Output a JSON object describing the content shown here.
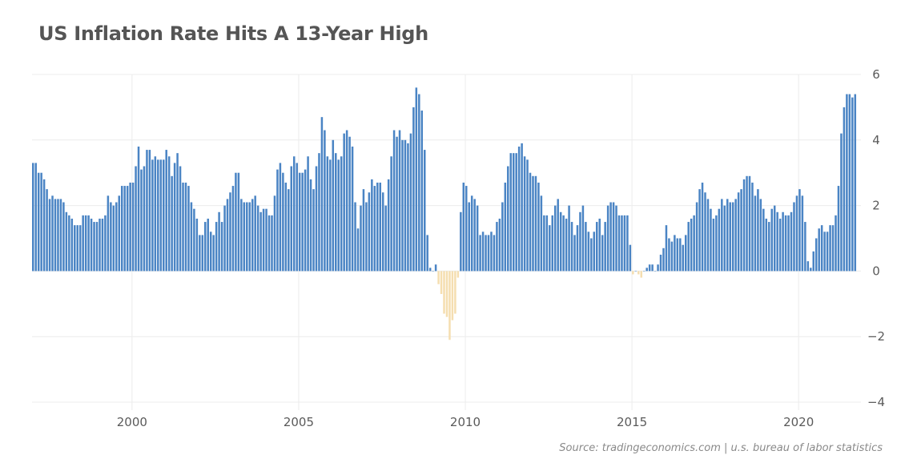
{
  "title": "US Inflation Rate Hits A 13-Year High",
  "source": "Source: tradingeconomics.com | u.s. bureau of labor statistics",
  "colors": {
    "positive": "#4a84c4",
    "negative": "#f5deb0",
    "grid": "#ececec",
    "text": "#5a5a5a"
  },
  "chart_data": {
    "type": "bar",
    "title": "US Inflation Rate Hits A 13-Year High",
    "xlabel": "",
    "ylabel": "",
    "ylim": [
      -4,
      6
    ],
    "yticks": [
      6,
      4,
      2,
      0,
      -2,
      -4
    ],
    "xticks": [
      2000,
      2005,
      2010,
      2015,
      2020
    ],
    "xlim": [
      1997.0,
      2021.75
    ],
    "start": "1997-01",
    "frequency": "monthly",
    "grid": true,
    "y_axis_position": "right",
    "series": [
      {
        "values": [
          3.3,
          3.3,
          3.0,
          3.0,
          2.8,
          2.5,
          2.2,
          2.3,
          2.2,
          2.2,
          2.2,
          2.1,
          1.8,
          1.7,
          1.6,
          1.4,
          1.4,
          1.4,
          1.7,
          1.7,
          1.7,
          1.6,
          1.5,
          1.5,
          1.6,
          1.6,
          1.7,
          2.3,
          2.1,
          2.0,
          2.1,
          2.3,
          2.6,
          2.6,
          2.6,
          2.7,
          2.7,
          3.2,
          3.8,
          3.1,
          3.2,
          3.7,
          3.7,
          3.4,
          3.5,
          3.4,
          3.4,
          3.4,
          3.7,
          3.5,
          2.9,
          3.3,
          3.6,
          3.2,
          2.7,
          2.7,
          2.6,
          2.1,
          1.9,
          1.6,
          1.1,
          1.1,
          1.5,
          1.6,
          1.2,
          1.1,
          1.5,
          1.8,
          1.5,
          2.0,
          2.2,
          2.4,
          2.6,
          3.0,
          3.0,
          2.2,
          2.1,
          2.1,
          2.1,
          2.2,
          2.3,
          2.0,
          1.8,
          1.9,
          1.9,
          1.7,
          1.7,
          2.3,
          3.1,
          3.3,
          3.0,
          2.7,
          2.5,
          3.2,
          3.5,
          3.3,
          3.0,
          3.0,
          3.1,
          3.5,
          2.8,
          2.5,
          3.2,
          3.6,
          4.7,
          4.3,
          3.5,
          3.4,
          4.0,
          3.6,
          3.4,
          3.5,
          4.2,
          4.3,
          4.1,
          3.8,
          2.1,
          1.3,
          2.0,
          2.5,
          2.1,
          2.4,
          2.8,
          2.6,
          2.7,
          2.7,
          2.4,
          2.0,
          2.8,
          3.5,
          4.3,
          4.1,
          4.3,
          4.0,
          4.0,
          3.9,
          4.2,
          5.0,
          5.6,
          5.4,
          4.9,
          3.7,
          1.1,
          0.1,
          0.0,
          0.2,
          -0.4,
          -0.7,
          -1.3,
          -1.4,
          -2.1,
          -1.5,
          -1.3,
          -0.2,
          1.8,
          2.7,
          2.6,
          2.1,
          2.3,
          2.2,
          2.0,
          1.1,
          1.2,
          1.1,
          1.1,
          1.2,
          1.1,
          1.5,
          1.6,
          2.1,
          2.7,
          3.2,
          3.6,
          3.6,
          3.6,
          3.8,
          3.9,
          3.5,
          3.4,
          3.0,
          2.9,
          2.9,
          2.7,
          2.3,
          1.7,
          1.7,
          1.4,
          1.7,
          2.0,
          2.2,
          1.8,
          1.7,
          1.6,
          2.0,
          1.5,
          1.1,
          1.4,
          1.8,
          2.0,
          1.5,
          1.2,
          1.0,
          1.2,
          1.5,
          1.6,
          1.1,
          1.5,
          2.0,
          2.1,
          2.1,
          2.0,
          1.7,
          1.7,
          1.7,
          1.7,
          0.8,
          -0.1,
          0.0,
          -0.1,
          -0.2,
          0.0,
          0.1,
          0.2,
          0.2,
          0.0,
          0.2,
          0.5,
          0.7,
          1.4,
          1.0,
          0.9,
          1.1,
          1.0,
          1.0,
          0.8,
          1.1,
          1.5,
          1.6,
          1.7,
          2.1,
          2.5,
          2.7,
          2.4,
          2.2,
          1.9,
          1.6,
          1.7,
          1.9,
          2.2,
          2.0,
          2.2,
          2.1,
          2.1,
          2.2,
          2.4,
          2.5,
          2.8,
          2.9,
          2.9,
          2.7,
          2.3,
          2.5,
          2.2,
          1.9,
          1.6,
          1.5,
          1.9,
          2.0,
          1.8,
          1.6,
          1.8,
          1.7,
          1.7,
          1.8,
          2.1,
          2.3,
          2.5,
          2.3,
          1.5,
          0.3,
          0.1,
          0.6,
          1.0,
          1.3,
          1.4,
          1.2,
          1.2,
          1.4,
          1.4,
          1.7,
          2.6,
          4.2,
          5.0,
          5.4,
          5.4,
          5.3,
          5.4
        ]
      }
    ]
  }
}
